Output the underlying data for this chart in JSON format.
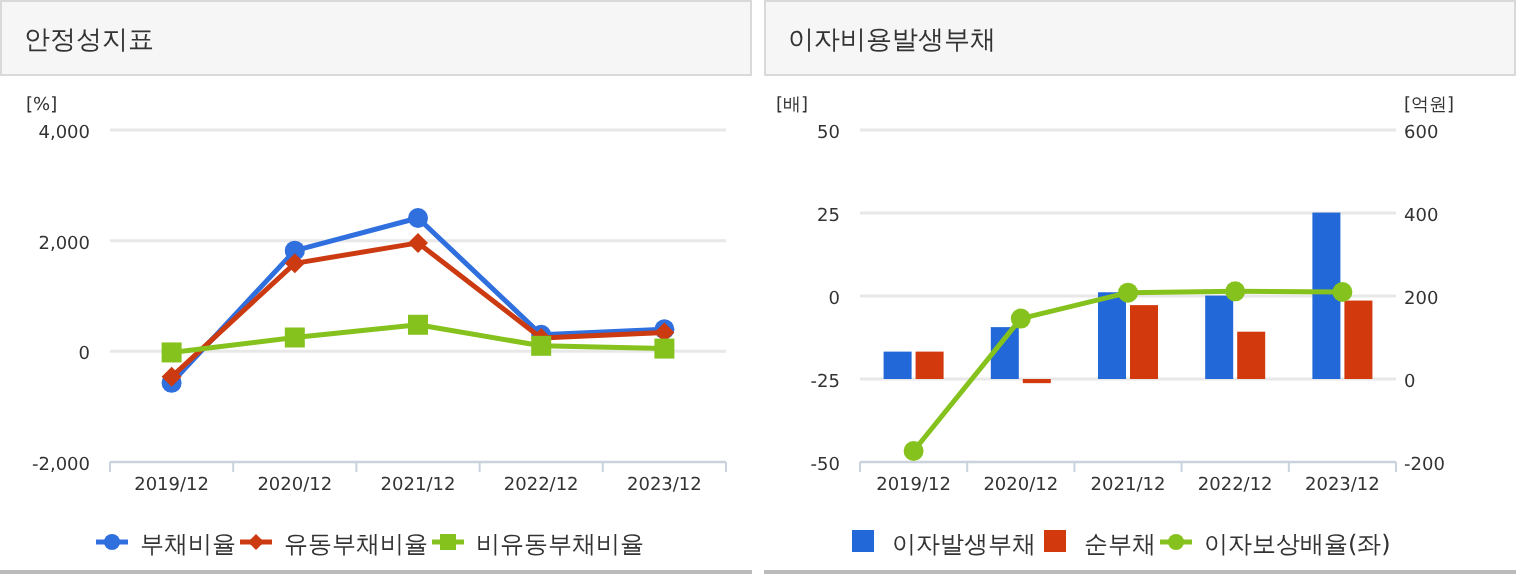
{
  "chart_data": [
    {
      "type": "line",
      "title": "안정성지표",
      "ylabel": "[%]",
      "categories": [
        "2019/12",
        "2020/12",
        "2021/12",
        "2022/12",
        "2023/12"
      ],
      "series": [
        {
          "name": "부채비율",
          "color": "#2f6fde",
          "marker": "circle",
          "values": [
            -570,
            1820,
            2410,
            300,
            400
          ]
        },
        {
          "name": "유동부채비율",
          "color": "#cc3a12",
          "marker": "diamond",
          "values": [
            -460,
            1590,
            1960,
            240,
            340
          ]
        },
        {
          "name": "비유동부채비율",
          "color": "#86c21d",
          "marker": "square",
          "values": [
            -20,
            250,
            480,
            100,
            50
          ]
        }
      ],
      "ylim": [
        -2000,
        4000
      ],
      "yticks": [
        {
          "value": -2000,
          "label": "-2,000"
        },
        0,
        {
          "value": 2000,
          "label": "2,000"
        },
        {
          "value": 4000,
          "label": "4,000"
        }
      ],
      "grid": "y",
      "legend": "bottom"
    },
    {
      "type": "bar",
      "title": "이자비용발생부채",
      "ylabel": "[배]",
      "y2label": "[억원]",
      "categories": [
        "2019/12",
        "2020/12",
        "2021/12",
        "2022/12",
        "2023/12"
      ],
      "series": [
        {
          "name": "이자발생부채",
          "color": "#2268d8",
          "axis": "y2",
          "values": [
            66,
            125,
            209,
            201,
            401
          ]
        },
        {
          "name": "순부채",
          "color": "#d23a0e",
          "axis": "y2",
          "values": [
            66,
            -10,
            178,
            114,
            189
          ]
        },
        {
          "name": "이자보상배율(좌)",
          "color": "#86c21d",
          "type": "line",
          "axis": "y",
          "marker": "circle",
          "values": [
            -46.7,
            -6.8,
            1.0,
            1.4,
            1.2
          ]
        }
      ],
      "ylim": [
        -50,
        50
      ],
      "yticks": [
        -50,
        -25,
        0,
        25,
        50
      ],
      "y2lim": [
        -200,
        600
      ],
      "y2ticks": [
        -200,
        0,
        200,
        400,
        600
      ],
      "grid": "y",
      "legend": "bottom"
    }
  ]
}
